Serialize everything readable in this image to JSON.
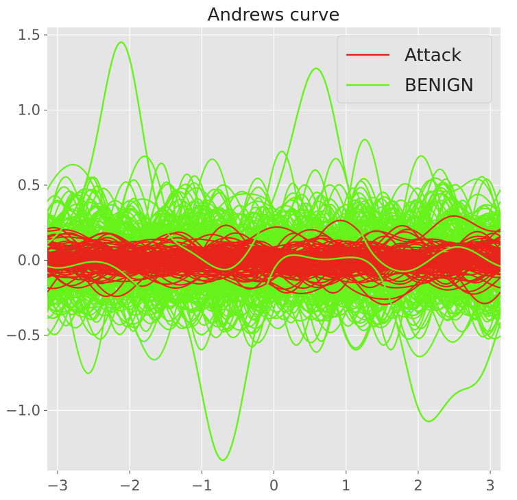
{
  "chart_data": {
    "type": "line",
    "title": "Andrews curve",
    "xlabel": "",
    "ylabel": "",
    "xlim": [
      -3.1416,
      3.1416
    ],
    "ylim": [
      -1.4,
      1.55
    ],
    "x_ticks": [
      -3,
      -2,
      -1,
      0,
      1,
      2,
      3
    ],
    "x_tick_labels": [
      "−3",
      "−2",
      "−1",
      "0",
      "1",
      "2",
      "3"
    ],
    "y_ticks": [
      -1.0,
      -0.5,
      0.0,
      0.5,
      1.0,
      1.5
    ],
    "y_tick_labels": [
      "−1.0",
      "−0.5",
      "0.0",
      "0.5",
      "1.0",
      "1.5"
    ],
    "grid": true,
    "background": "#e5e5e5",
    "legend_position": "top-right",
    "series": [
      {
        "name": "Attack",
        "color": "#e8251b",
        "approx_curve_count": 120,
        "y_range": [
          -0.25,
          0.25
        ]
      },
      {
        "name": "BENIGN",
        "color": "#66f21a",
        "approx_curve_count": 250,
        "y_range": [
          -1.25,
          1.42
        ],
        "notable_points": [
          {
            "x": -2.1,
            "y": 1.42
          },
          {
            "x": 0.62,
            "y": 1.18
          },
          {
            "x": -0.72,
            "y": -1.25
          },
          {
            "x": 2.1,
            "y": -0.97
          },
          {
            "x": 2.8,
            "y": -0.78
          }
        ]
      }
    ]
  }
}
